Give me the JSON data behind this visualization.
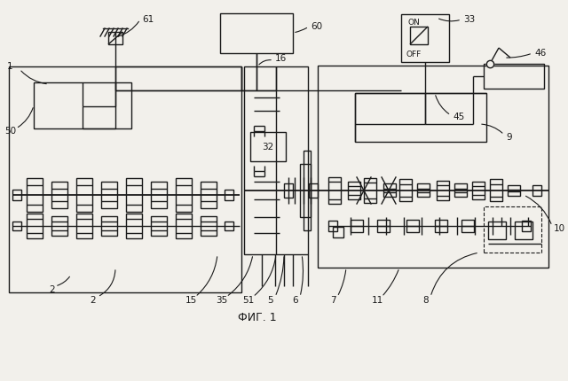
{
  "title": "ФИГ. 1",
  "bg_color": "#f2f0eb",
  "line_color": "#1a1a1a",
  "figsize": [
    6.4,
    4.3
  ],
  "dpi": 100
}
